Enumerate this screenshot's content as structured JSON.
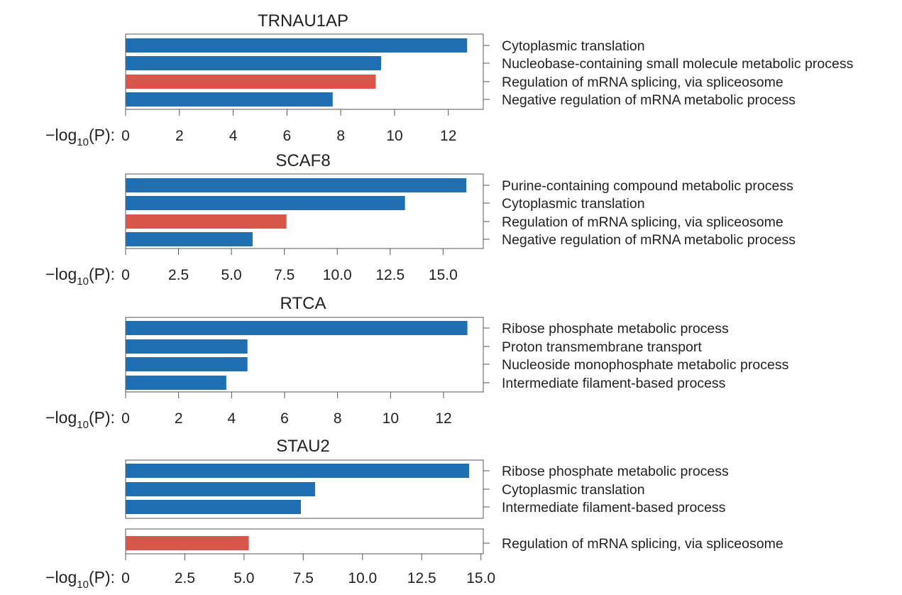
{
  "chart_data": [
    {
      "type": "bar",
      "orientation": "horizontal",
      "title": "TRNAU1AP",
      "xlabel": "−log",
      "xlabel_sub": "10",
      "xlabel_suffix": "(P):",
      "categories": [
        "Cytoplasmic translation",
        "Nucleobase-containing small molecule metabolic process",
        "Regulation of mRNA splicing, via spliceosome",
        "Negative regulation of mRNA metabolic process"
      ],
      "values": [
        12.7,
        9.5,
        9.3,
        7.7
      ],
      "bar_colors": [
        "#1f6fb2",
        "#1f6fb2",
        "#d6564a",
        "#1f6fb2"
      ],
      "xlim": [
        0,
        13.3
      ],
      "xticks": [
        0,
        2,
        4,
        6,
        8,
        10,
        12
      ],
      "xtick_labels": [
        "0",
        "2",
        "4",
        "6",
        "8",
        "10",
        "12"
      ]
    },
    {
      "type": "bar",
      "orientation": "horizontal",
      "title": "SCAF8",
      "xlabel": "−log",
      "xlabel_sub": "10",
      "xlabel_suffix": "(P):",
      "categories": [
        "Purine-containing compound metabolic process",
        "Cytoplasmic translation",
        "Regulation of mRNA splicing, via spliceosome",
        "Negative regulation of mRNA metabolic process"
      ],
      "values": [
        16.1,
        13.2,
        7.6,
        6.0
      ],
      "bar_colors": [
        "#1f6fb2",
        "#1f6fb2",
        "#d6564a",
        "#1f6fb2"
      ],
      "xlim": [
        0,
        16.9
      ],
      "xticks": [
        0,
        2.5,
        5.0,
        7.5,
        10.0,
        12.5,
        15.0
      ],
      "xtick_labels": [
        "0",
        "2.5",
        "5.0",
        "7.5",
        "10.0",
        "12.5",
        "15.0"
      ]
    },
    {
      "type": "bar",
      "orientation": "horizontal",
      "title": "RTCA",
      "xlabel": "−log",
      "xlabel_sub": "10",
      "xlabel_suffix": "(P):",
      "categories": [
        "Ribose phosphate metabolic process",
        "Proton transmembrane transport",
        "Nucleoside monophosphate metabolic process",
        "Intermediate filament-based process"
      ],
      "values": [
        12.9,
        4.6,
        4.6,
        3.8
      ],
      "bar_colors": [
        "#1f6fb2",
        "#1f6fb2",
        "#1f6fb2",
        "#1f6fb2"
      ],
      "xlim": [
        0,
        13.5
      ],
      "xticks": [
        0,
        2,
        4,
        6,
        8,
        10,
        12
      ],
      "xtick_labels": [
        "0",
        "2",
        "4",
        "6",
        "8",
        "10",
        "12"
      ]
    },
    {
      "type": "bar",
      "orientation": "horizontal",
      "title": "STAU2",
      "xlabel": "−log",
      "xlabel_sub": "10",
      "xlabel_suffix": "(P):",
      "categories": [
        "Ribose phosphate metabolic process",
        "Cytoplasmic translation",
        "Intermediate filament-based process",
        "Regulation of mRNA splicing, via spliceosome"
      ],
      "values": [
        14.5,
        8.0,
        7.4,
        5.2
      ],
      "bar_colors": [
        "#1f6fb2",
        "#1f6fb2",
        "#1f6fb2",
        "#d6564a"
      ],
      "xlim": [
        0,
        15.1
      ],
      "xticks": [
        0,
        2.5,
        5.0,
        7.5,
        10.0,
        12.5,
        15.0
      ],
      "xtick_labels": [
        "0",
        "2.5",
        "5.0",
        "7.5",
        "10.0",
        "12.5",
        "15.0"
      ],
      "split_panel": true
    }
  ]
}
